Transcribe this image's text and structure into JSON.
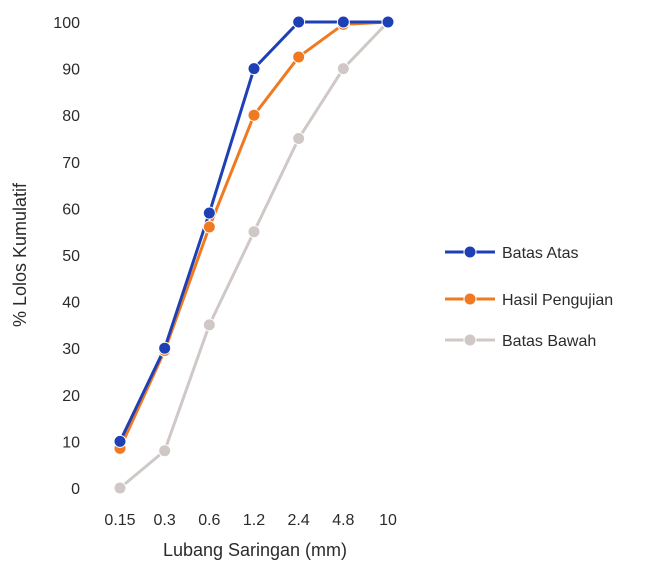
{
  "chart_data": {
    "type": "line",
    "title": "",
    "xlabel": "Lubang Saringan (mm)",
    "ylabel": "% Lolos Kumulatif",
    "categories": [
      "0.15",
      "0.3",
      "0.6",
      "1.2",
      "2.4",
      "4.8",
      "10"
    ],
    "yticks": [
      "0",
      "10",
      "20",
      "30",
      "40",
      "50",
      "60",
      "70",
      "80",
      "90",
      "100"
    ],
    "ylim": [
      0,
      100
    ],
    "grid": false,
    "legend_position": "right",
    "series": [
      {
        "name": "Batas Atas",
        "color": "#1f3fb5",
        "values": [
          10,
          30,
          59,
          90,
          100,
          100,
          100
        ]
      },
      {
        "name": "Hasil Pengujian",
        "color": "#f07a22",
        "values": [
          8.5,
          29.5,
          56,
          80,
          92.5,
          99.5,
          100
        ]
      },
      {
        "name": "Batas Bawah",
        "color": "#cfc8c6",
        "values": [
          0,
          8,
          35,
          55,
          75,
          90,
          100
        ]
      }
    ]
  }
}
